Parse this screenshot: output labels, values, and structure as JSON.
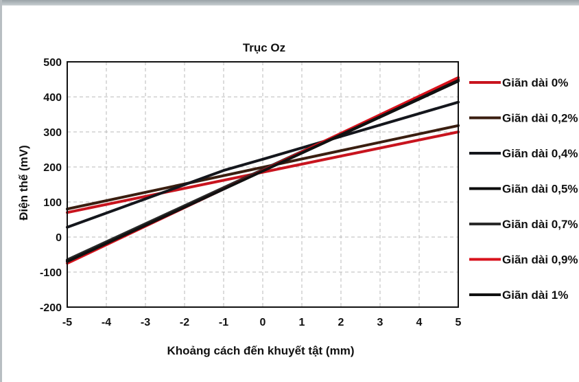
{
  "chart_data": {
    "type": "line",
    "title": "Trục Oz",
    "xlabel": "Khoảng cách đến khuyết tật (mm)",
    "ylabel": "Điện thế (mV)",
    "xlim": [
      -5,
      5
    ],
    "ylim": [
      -200,
      500
    ],
    "x_ticks": [
      -5,
      -4,
      -3,
      -2,
      -1,
      0,
      1,
      2,
      3,
      4,
      5
    ],
    "y_ticks": [
      -200,
      -100,
      0,
      100,
      200,
      300,
      400,
      500
    ],
    "grid": true,
    "legend_position": "right",
    "series": [
      {
        "name": "Giãn dài 0%",
        "color": "#c8141e",
        "x": [
          -5,
          5
        ],
        "y": [
          70,
          300
        ]
      },
      {
        "name": "Giãn dài 0,2%",
        "color": "#3a1e10",
        "x": [
          -5,
          5
        ],
        "y": [
          80,
          318
        ]
      },
      {
        "name": "Giãn dài 0,4%",
        "color": "#14161c",
        "x": [
          -5,
          -1,
          0,
          5
        ],
        "y": [
          28,
          190,
          222,
          385
        ]
      },
      {
        "name": "Giãn dài 0,5%",
        "color": "#0a0a0a",
        "x": [
          -5,
          5
        ],
        "y": [
          -68,
          445
        ]
      },
      {
        "name": "Giãn dài 0,7%",
        "color": "#2a2a2a",
        "x": [
          -5,
          5
        ],
        "y": [
          -65,
          450
        ]
      },
      {
        "name": "Giãn dài 0,9%",
        "color": "#d8121c",
        "x": [
          -5,
          5
        ],
        "y": [
          -75,
          455
        ]
      },
      {
        "name": "Giãn dài 1%",
        "color": "#111111",
        "x": [
          -5,
          5
        ],
        "y": [
          -70,
          447
        ]
      }
    ]
  }
}
